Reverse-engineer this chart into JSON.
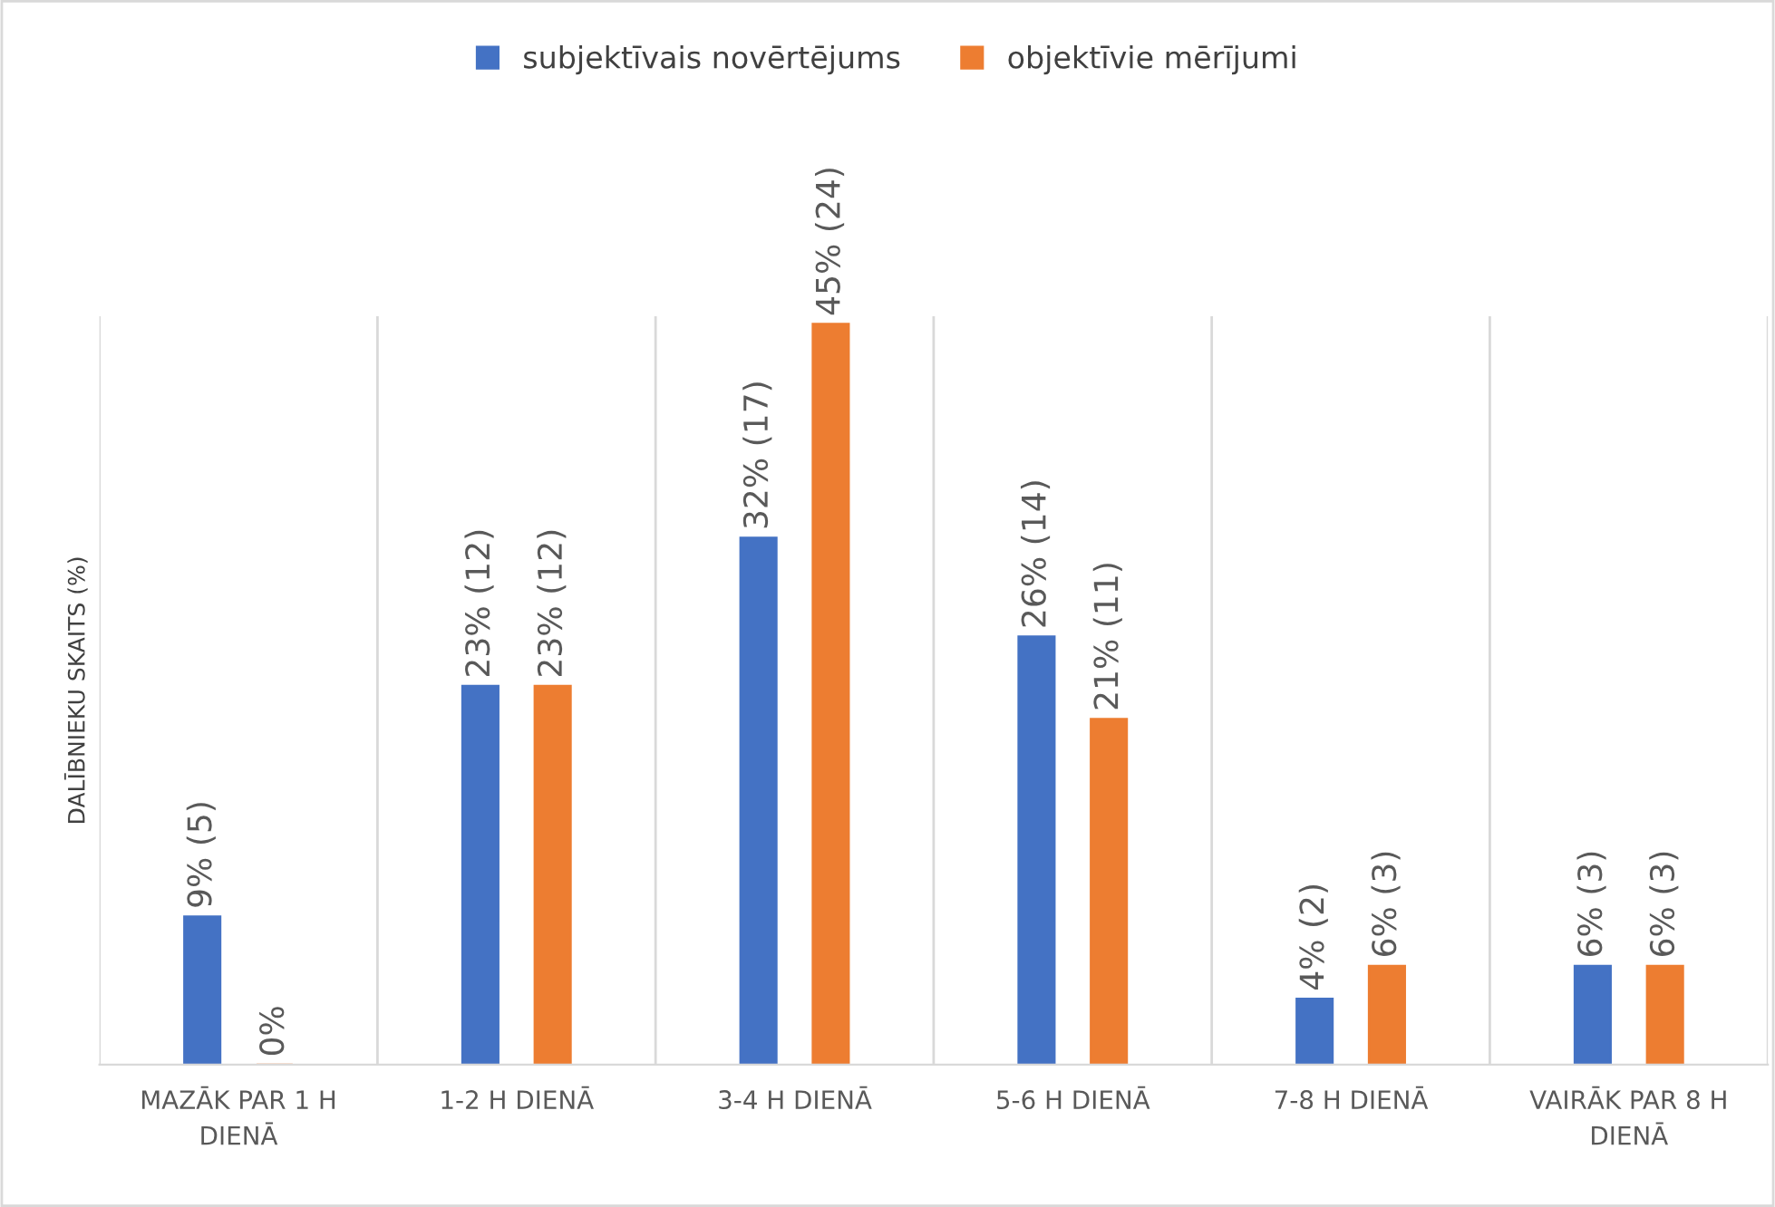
{
  "chart_data": {
    "type": "bar",
    "ylabel": "DALĪBNIEKU SKAITS (%)",
    "categories": [
      "MAZĀK PAR 1 H DIENĀ",
      "1-2 H DIENĀ",
      "3-4 H DIENĀ",
      "5-6 H DIENĀ",
      "7-8 H DIENĀ",
      "VAIRĀK PAR 8 H DIENĀ"
    ],
    "series": [
      {
        "name": "subjektīvais novērtējums",
        "color": "#4472c4",
        "values": [
          9,
          23,
          32,
          26,
          4,
          6
        ],
        "value_labels": [
          "9% (5)",
          "23% (12)",
          "32% (17)",
          "26% (14)",
          "4% (2)",
          "6% (3)"
        ]
      },
      {
        "name": "objektīvie mērījumi",
        "color": "#ed7d31",
        "values": [
          0,
          23,
          45,
          21,
          6,
          6
        ],
        "value_labels": [
          "0%",
          "23% (12)",
          "45% (24)",
          "21% (11)",
          "6% (3)",
          "6% (3)"
        ]
      }
    ],
    "grid": "x",
    "legend": "top",
    "tick_labels": "x"
  }
}
